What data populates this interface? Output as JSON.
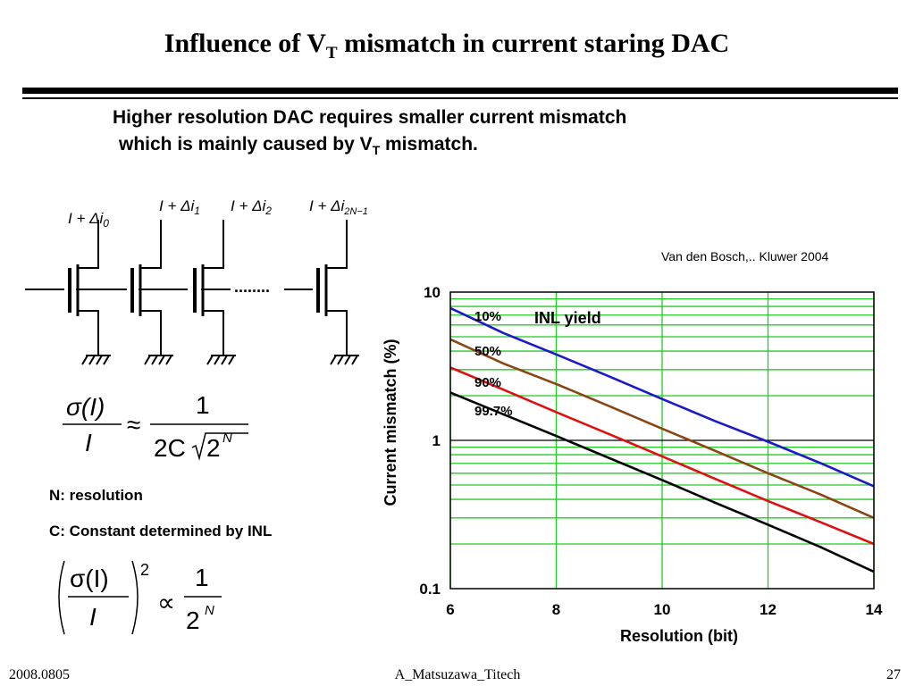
{
  "slide": {
    "title_main": "Influence of V",
    "title_sub": "T",
    "title_rest": " mismatch in current staring DAC",
    "subtitle_line1": "Higher resolution DAC requires smaller current mismatch",
    "subtitle_line2_pre": "which is mainly caused by V",
    "subtitle_line2_sub": "T",
    "subtitle_line2_post": " mismatch.",
    "citation": "Van den Bosch,.. Kluwer 2004",
    "n_label": "N: resolution",
    "c_label": "C: Constant determined by INL",
    "footer_date": "2008.0805",
    "footer_author": "A_Matsuzawa_Titech",
    "footer_page": "27"
  },
  "circuit": {
    "currents": [
      {
        "pre": "I + Δi",
        "sub": "0"
      },
      {
        "pre": "I + Δi",
        "sub": "1"
      },
      {
        "pre": "I + Δi",
        "sub": "2"
      },
      {
        "pre": "I + Δi",
        "sub": "2N−1"
      }
    ],
    "ellipsis": "........"
  },
  "equations": {
    "eq1_sigma": "σ(I)",
    "eq1_den": "I",
    "eq1_approx": "≈",
    "eq1_one": "1",
    "eq1_two_c": "2C",
    "eq1_two": "2",
    "eq1_n": "N",
    "eq2_sigma": "σ(I)",
    "eq2_den": "I",
    "eq2_power": "2",
    "eq2_prop": "∝",
    "eq2_one": "1",
    "eq2_two": "2",
    "eq2_n": "N"
  },
  "chart_data": {
    "type": "line",
    "title": "",
    "legend_title": "INL yield",
    "xlabel": "Resolution (bit)",
    "ylabel": "Current mismatch (%)",
    "xlim": [
      6,
      14
    ],
    "ylim": [
      0.1,
      10
    ],
    "y_scale": "log",
    "grid": true,
    "x_ticks": [
      "6",
      "8",
      "10",
      "12",
      "14"
    ],
    "y_ticks": [
      "0.1",
      "1",
      "10"
    ],
    "series": [
      {
        "name": "10%",
        "color": "#1a1acc",
        "x": [
          6,
          7,
          8,
          9,
          10,
          11,
          12,
          13,
          14
        ],
        "y": [
          7.8,
          5.3,
          3.8,
          2.7,
          1.9,
          1.35,
          0.98,
          0.7,
          0.49
        ]
      },
      {
        "name": "50%",
        "color": "#8b4513",
        "x": [
          6,
          7,
          8,
          9,
          10,
          11,
          12,
          13,
          14
        ],
        "y": [
          4.8,
          3.3,
          2.4,
          1.7,
          1.2,
          0.85,
          0.6,
          0.43,
          0.3
        ]
      },
      {
        "name": "90%",
        "color": "#e01010",
        "x": [
          6,
          7,
          8,
          9,
          10,
          11,
          12,
          13,
          14
        ],
        "y": [
          3.1,
          2.2,
          1.55,
          1.1,
          0.78,
          0.55,
          0.39,
          0.28,
          0.2
        ]
      },
      {
        "name": "99.7%",
        "color": "#000000",
        "x": [
          6,
          7,
          8,
          9,
          10,
          11,
          12,
          13,
          14
        ],
        "y": [
          2.1,
          1.5,
          1.07,
          0.76,
          0.54,
          0.38,
          0.27,
          0.19,
          0.13
        ]
      }
    ]
  }
}
